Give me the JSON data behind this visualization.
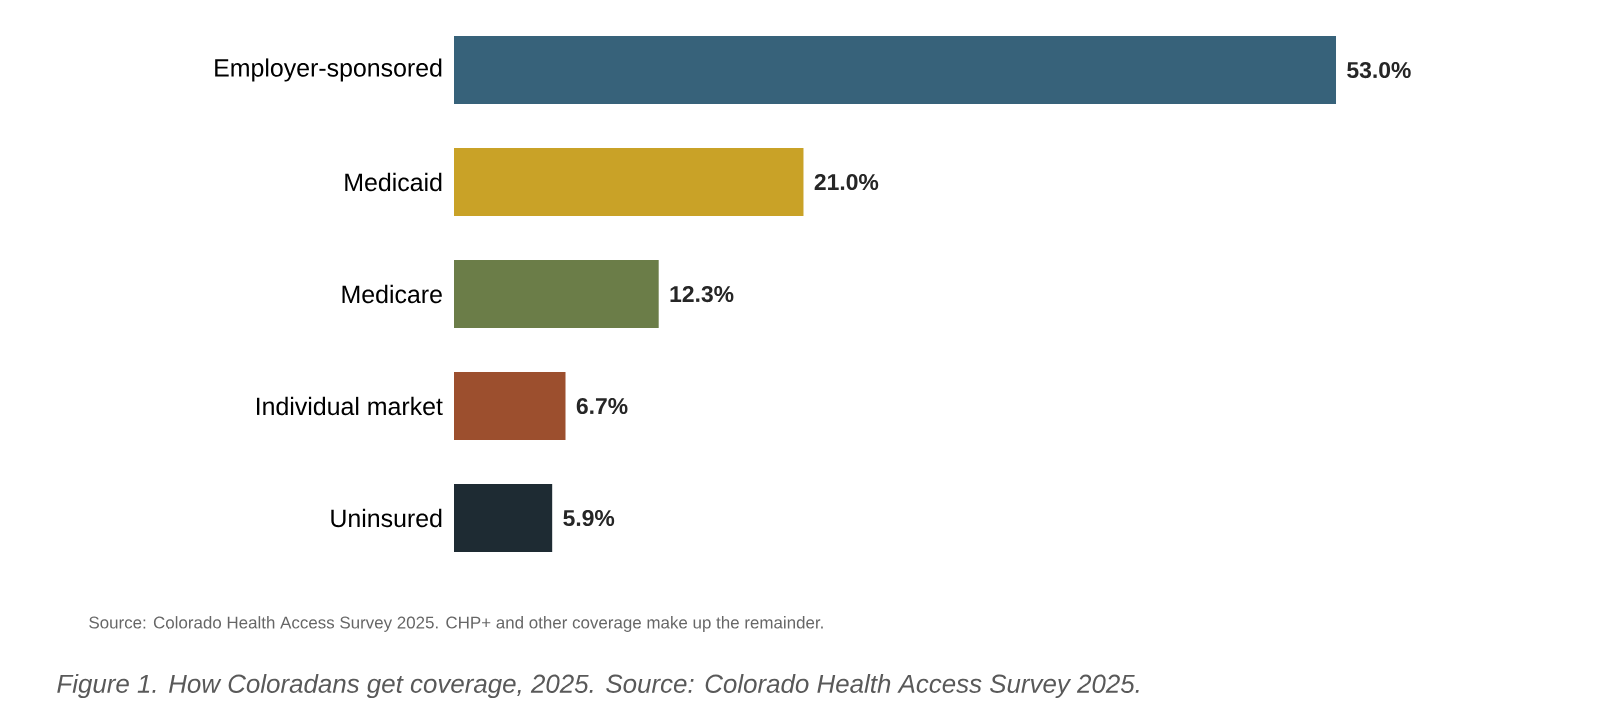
{
  "chart_data": {
    "type": "bar",
    "orientation": "horizontal",
    "categories": [
      "Employer-sponsored",
      "Medicaid",
      "Medicare",
      "Individual market",
      "Uninsured"
    ],
    "values": [
      53.0,
      21.0,
      12.3,
      6.7,
      5.9
    ],
    "colors": [
      "#37627a",
      "#c9a227",
      "#6b7d48",
      "#9c4f2e",
      "#1e2b33"
    ],
    "value_labels": [
      "53.0%",
      "21.0%",
      "12.3%",
      "6.7%",
      "5.9%"
    ],
    "annotations": [
      "Source: Colorado Health Access Survey 2025. CHP+ and other coverage make up the remainder.",
      "Figure 1. How Coloradans get coverage, 2025. Source: Colorado Health Access Survey 2025."
    ]
  }
}
